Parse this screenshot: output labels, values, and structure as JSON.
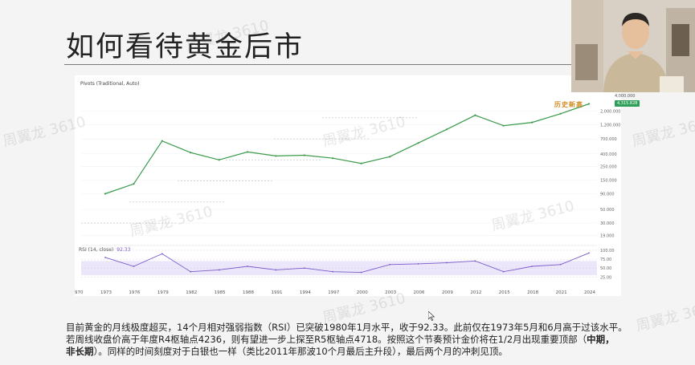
{
  "slide": {
    "title": "如何看待黄金后市"
  },
  "chart_header": {
    "pivots_label": "Pivots (Traditional, Auto)",
    "rsi_label": "RSI (14, close)",
    "rsi_value": "92.33",
    "annotation": "历史新高",
    "price_badge": "4,315.828",
    "price_top": "4,000.000"
  },
  "chart_data": {
    "type": "line",
    "x": [
      "1973",
      "1976",
      "1979",
      "1982",
      "1985",
      "1988",
      "1991",
      "1994",
      "1997",
      "2000",
      "2003",
      "2006",
      "2009",
      "2012",
      "2015",
      "2018",
      "2021",
      "2024"
    ],
    "y_ticks": [
      "2,000.000",
      "1,200.000",
      "700.000",
      "400.000",
      "250.000",
      "150.000",
      "90.000",
      "50.000",
      "30.000",
      "19.000"
    ],
    "y_scale": "log",
    "series": [
      {
        "values": [
          90,
          130,
          650,
          420,
          320,
          430,
          370,
          380,
          340,
          280,
          360,
          600,
          1000,
          1700,
          1150,
          1300,
          1800,
          2600
        ]
      }
    ],
    "rsi": {
      "y_ticks": [
        "100.00",
        "75.00",
        "50.00",
        "25.00"
      ],
      "values": [
        80,
        55,
        90,
        40,
        45,
        55,
        45,
        50,
        40,
        38,
        60,
        62,
        65,
        70,
        40,
        55,
        60,
        92.33
      ],
      "last_value": 92.33
    },
    "first_x_label": "970"
  },
  "caption": {
    "line1": "目前黄金的月线极度超买，14个月相对强弱指数（RSI）已突破1980年1月水平，收于92.33。此前仅在1973年5月和6月高于过该水平。",
    "line2a": "若周线收盘价高于年度R4枢轴点4236，则有望进一步上探至R5枢轴点4718。按照这个节奏预计金价将在1/2月出现重要顶部（",
    "line2b": "中期，",
    "line3a": "非长期",
    "line3b": "）。同样的时间刻度对于白银也一样（类比2011年那波10个月最后主升段），最后两个月的冲刺见顶。"
  },
  "watermark_text": "周翼龙 3610",
  "colors": {
    "price_line": "#3a9a4a",
    "rsi_line": "#7a5cc9",
    "rsi_band": "#ece6fb",
    "pivot": "#9aa0a6",
    "badge": "#2f9e58"
  }
}
